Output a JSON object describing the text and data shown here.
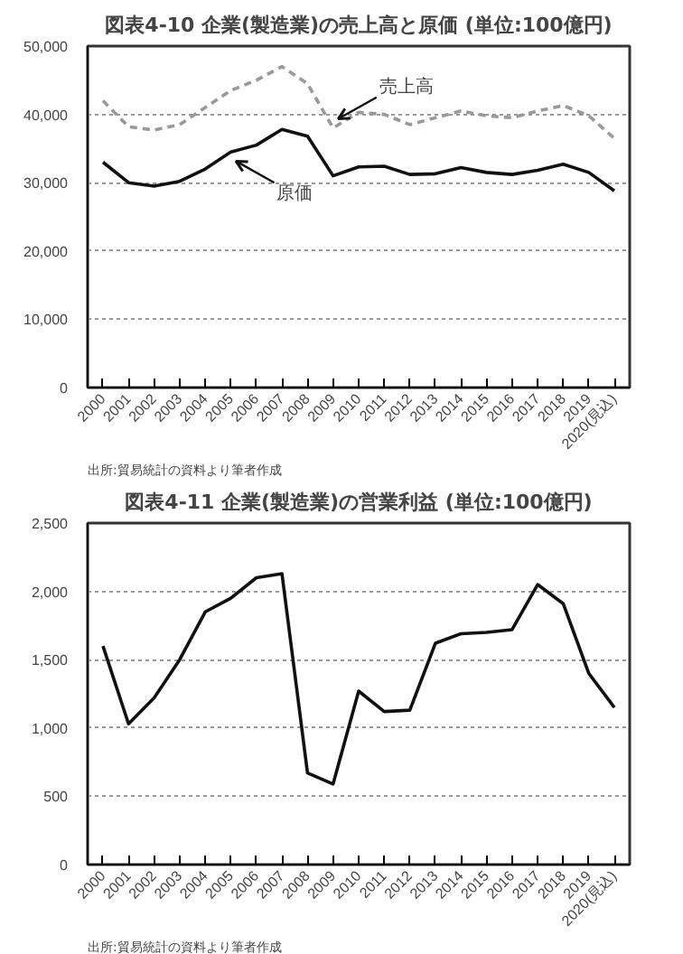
{
  "chart_data": [
    {
      "type": "line",
      "title": "図表4-10 企業(製造業)の売上高と原価 (単位:100億円)",
      "categories": [
        "2000",
        "2001",
        "2002",
        "2003",
        "2004",
        "2005",
        "2006",
        "2007",
        "2008",
        "2009",
        "2010",
        "2011",
        "2012",
        "2013",
        "2014",
        "2015",
        "2016",
        "2017",
        "2018",
        "2019",
        "2020(見込)"
      ],
      "series": [
        {
          "name": "売上高",
          "color": "#999999",
          "line_style": "dashed",
          "values": [
            42000,
            38200,
            37700,
            38500,
            41000,
            43500,
            45000,
            47000,
            44500,
            38000,
            40300,
            40000,
            38500,
            39500,
            40500,
            39800,
            39500,
            40500,
            41300,
            39800,
            36500
          ]
        },
        {
          "name": "原価",
          "color": "#111111",
          "line_style": "solid",
          "values": [
            33000,
            30000,
            29500,
            30200,
            32000,
            34500,
            35500,
            37800,
            36800,
            31000,
            32300,
            32400,
            31200,
            31300,
            32200,
            31500,
            31200,
            31800,
            32700,
            31500,
            28800
          ]
        }
      ],
      "ylim": [
        0,
        50000
      ],
      "yticks": [
        {
          "value": 0,
          "label": "0"
        },
        {
          "value": 10000,
          "label": "10,000"
        },
        {
          "value": 20000,
          "label": "20,000"
        },
        {
          "value": 30000,
          "label": "30,000"
        },
        {
          "value": 40000,
          "label": "40,000"
        },
        {
          "value": 50000,
          "label": "50,000"
        }
      ],
      "grid": "y",
      "legend": false,
      "annotations": [
        "出所:貿易統計の資料より筆者作成"
      ]
    },
    {
      "type": "line",
      "title": "図表4-11 企業(製造業)の営業利益 (単位:100億円)",
      "categories": [
        "2000",
        "2001",
        "2002",
        "2003",
        "2004",
        "2005",
        "2006",
        "2007",
        "2008",
        "2009",
        "2010",
        "2011",
        "2012",
        "2013",
        "2014",
        "2015",
        "2016",
        "2017",
        "2018",
        "2019",
        "2020(見込)"
      ],
      "series": [
        {
          "color": "#111111",
          "line_style": "solid",
          "values": [
            1600,
            1030,
            1220,
            1500,
            1850,
            1950,
            2100,
            2130,
            670,
            590,
            1270,
            1120,
            1130,
            1620,
            1690,
            1700,
            1720,
            2050,
            1910,
            1400,
            1150
          ]
        }
      ],
      "ylim": [
        0,
        2500
      ],
      "yticks": [
        {
          "value": 0,
          "label": "0"
        },
        {
          "value": 500,
          "label": "500"
        },
        {
          "value": 1000,
          "label": "1,000"
        },
        {
          "value": 1500,
          "label": "1,500"
        },
        {
          "value": 2000,
          "label": "2,000"
        },
        {
          "value": 2500,
          "label": "2,500"
        }
      ],
      "grid": "y",
      "legend": false,
      "annotations": [
        "出所:貿易統計の資料より筆者作成"
      ]
    }
  ]
}
